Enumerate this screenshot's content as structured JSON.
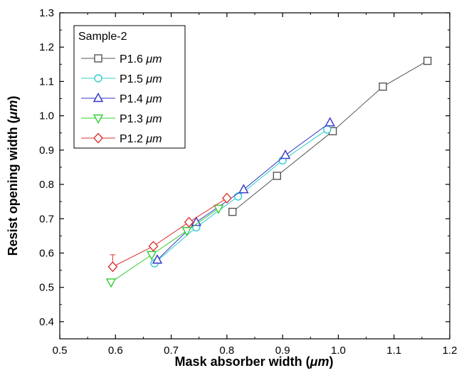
{
  "chart_data": {
    "type": "scatter",
    "title": "",
    "xlabel_prefix": "Mask absorber width (",
    "xlabel_unit": "μm",
    "xlabel_suffix": ")",
    "ylabel_prefix": "Resist opening width (",
    "ylabel_unit": "μm",
    "ylabel_suffix": ")",
    "xlim": [
      0.5,
      1.2
    ],
    "ylim": [
      0.35,
      1.3
    ],
    "xticks": [
      "0.5",
      "0.6",
      "0.7",
      "0.8",
      "0.9",
      "1.0",
      "1.1",
      "1.2"
    ],
    "yticks": [
      "0.4",
      "0.5",
      "0.6",
      "0.7",
      "0.8",
      "0.9",
      "1.0",
      "1.1",
      "1.2",
      "1.3"
    ],
    "legend_title": "Sample-2",
    "legend_placement": "top-left",
    "grid": false,
    "series": [
      {
        "name_prefix": "P1.6 ",
        "name_unit": "μm",
        "color": "#555555",
        "marker": "square",
        "x": [
          0.81,
          0.89,
          0.99,
          1.08,
          1.16
        ],
        "y": [
          0.72,
          0.825,
          0.955,
          1.085,
          1.16
        ]
      },
      {
        "name_prefix": "P1.5 ",
        "name_unit": "μm",
        "color": "#33cccc",
        "marker": "circle",
        "x": [
          0.67,
          0.745,
          0.82,
          0.9,
          0.98
        ],
        "y": [
          0.57,
          0.675,
          0.765,
          0.87,
          0.96
        ]
      },
      {
        "name_prefix": "P1.4 ",
        "name_unit": "μm",
        "color": "#3333cc",
        "marker": "triangle-up",
        "x": [
          0.675,
          0.745,
          0.83,
          0.905,
          0.985
        ],
        "y": [
          0.58,
          0.69,
          0.785,
          0.885,
          0.98
        ]
      },
      {
        "name_prefix": "P1.3 ",
        "name_unit": "μm",
        "color": "#33cc33",
        "marker": "triangle-down",
        "x": [
          0.592,
          0.665,
          0.728,
          0.785
        ],
        "y": [
          0.515,
          0.595,
          0.665,
          0.73
        ]
      },
      {
        "name_prefix": "P1.2 ",
        "name_unit": "μm",
        "color": "#dd3333",
        "marker": "diamond",
        "x": [
          0.595,
          0.668,
          0.732,
          0.8
        ],
        "y": [
          0.56,
          0.62,
          0.69,
          0.76
        ],
        "error_up": [
          0.035,
          0,
          0,
          0
        ]
      }
    ]
  }
}
